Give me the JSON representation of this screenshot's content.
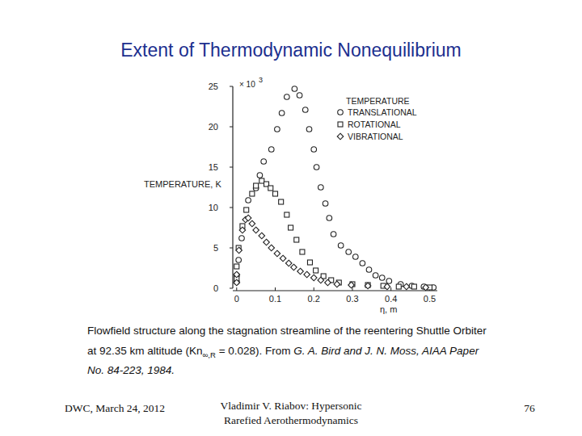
{
  "slide": {
    "title": "Extent of Thermodynamic Nonequilibrium",
    "caption": [
      [
        {
          "text": "Flowfield structure along the stagnation streamline of the reentering Shuttle Orbiter"
        }
      ],
      [
        {
          "text": "at 92.35 km altitude (Kn"
        },
        {
          "text": "∞,R",
          "sub": true
        },
        {
          "text": " = 0.028). From "
        },
        {
          "text": "G. A. Bird and J. N. Moss, AIAA Paper",
          "italic": true
        }
      ],
      [
        {
          "text": "No. 84-223, 1984.",
          "italic": true
        }
      ]
    ],
    "footer": {
      "left": "DWC, March 24, 2012",
      "center": [
        "Vladimir V. Riabov: Hypersonic",
        "Rarefied Aerothermodynamics"
      ],
      "right": "76"
    }
  },
  "chart_data": {
    "type": "scatter",
    "x_label": "η, m",
    "y_label": "TEMPERATURE, K",
    "annotations": [
      {
        "text": "× 10",
        "superscript": "3"
      }
    ],
    "legend_title": "TEMPERATURE",
    "legend": "upper right",
    "grid": false,
    "xlim": [
      -0.01,
      0.52
    ],
    "xticks": [
      0,
      0.1,
      0.2,
      0.3,
      0.4,
      0.5
    ],
    "ylim": [
      0,
      25
    ],
    "yticks": [
      0,
      5,
      10,
      15,
      20,
      25
    ],
    "series": [
      {
        "name": "TRANSLATIONAL",
        "color": "#222222",
        "marker": "circle",
        "x": [
          0,
          0,
          0.005,
          0.013,
          0.03,
          0.05,
          0.06,
          0.07,
          0.09,
          0.105,
          0.117,
          0.13,
          0.15,
          0.163,
          0.178,
          0.188,
          0.2,
          0.207,
          0.218,
          0.23,
          0.24,
          0.251,
          0.27,
          0.29,
          0.308,
          0.326,
          0.343,
          0.36,
          0.377,
          0.395,
          0.425,
          0.454,
          0.485,
          0.51
        ],
        "values": [
          0.8,
          1.6,
          3.5,
          6.2,
          10.9,
          12.4,
          14.0,
          15.7,
          17.2,
          19.7,
          21.7,
          23.7,
          24.7,
          23.9,
          22.1,
          19.7,
          17.2,
          15.0,
          12.5,
          10.5,
          8.7,
          6.7,
          5.3,
          4.5,
          3.9,
          3.1,
          2.3,
          1.6,
          1.3,
          0.9,
          0.5,
          0.3,
          0.2,
          0.1
        ]
      },
      {
        "name": "ROTATIONAL",
        "color": "#222222",
        "marker": "square",
        "x": [
          0,
          0,
          0.005,
          0.015,
          0.025,
          0.04,
          0.05,
          0.065,
          0.077,
          0.088,
          0.1,
          0.115,
          0.13,
          0.14,
          0.155,
          0.17,
          0.19,
          0.205,
          0.225,
          0.245,
          0.265,
          0.3,
          0.34,
          0.38,
          0.42,
          0.46,
          0.5
        ],
        "values": [
          1.2,
          2.7,
          5.0,
          7.7,
          9.7,
          11.7,
          12.7,
          13.3,
          12.9,
          12.4,
          11.7,
          10.7,
          9.1,
          7.5,
          6.0,
          4.5,
          3.2,
          2.2,
          1.5,
          1.0,
          0.7,
          0.5,
          0.4,
          0.3,
          0.2,
          0.2,
          0.1
        ]
      },
      {
        "name": "VIBRATIONAL",
        "color": "#222222",
        "marker": "diamond",
        "x": [
          0,
          0,
          0.006,
          0.015,
          0.023,
          0.03,
          0.04,
          0.05,
          0.065,
          0.077,
          0.09,
          0.105,
          0.12,
          0.135,
          0.148,
          0.165,
          0.182,
          0.2,
          0.218,
          0.236,
          0.26,
          0.297,
          0.34,
          0.39,
          0.44,
          0.49
        ],
        "values": [
          0.7,
          1.7,
          4.7,
          7.2,
          8.5,
          8.7,
          8.0,
          7.2,
          6.5,
          5.7,
          5.0,
          4.3,
          3.7,
          3.1,
          2.6,
          2.1,
          1.7,
          1.3,
          1.0,
          0.7,
          0.5,
          0.4,
          0.3,
          0.2,
          0.2,
          0.1
        ]
      }
    ]
  }
}
